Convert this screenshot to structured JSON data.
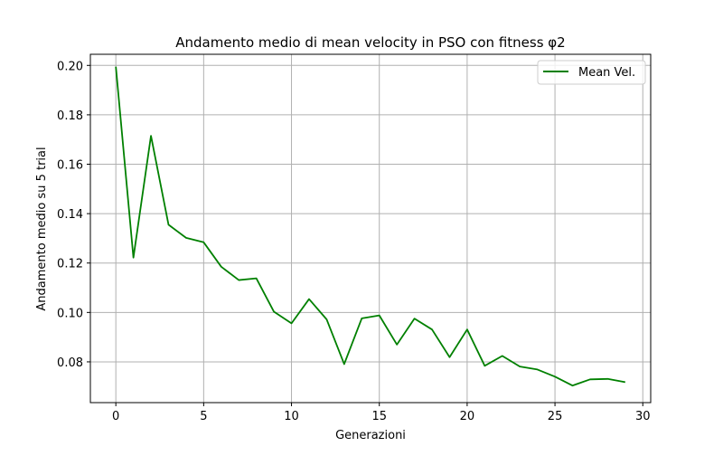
{
  "chart_data": {
    "type": "line",
    "title": "Andamento medio di mean velocity in PSO con fitness φ2",
    "xlabel": "Generazioni",
    "ylabel": "Andamento medio su 5 trial",
    "xlim": [
      -1.45,
      30.45
    ],
    "ylim": [
      0.0635,
      0.2045
    ],
    "xticks": [
      0,
      5,
      10,
      15,
      20,
      25,
      30
    ],
    "xtick_labels": [
      "0",
      "5",
      "10",
      "15",
      "20",
      "25",
      "30"
    ],
    "yticks": [
      0.08,
      0.1,
      0.12,
      0.14,
      0.16,
      0.18,
      0.2
    ],
    "ytick_labels": [
      "0.08",
      "0.10",
      "0.12",
      "0.14",
      "0.16",
      "0.18",
      "0.20"
    ],
    "grid": true,
    "legend_position": "top-right",
    "series": [
      {
        "name": "Mean Vel.",
        "color": "#008000",
        "x": [
          0,
          1,
          2,
          3,
          4,
          5,
          6,
          7,
          8,
          9,
          10,
          11,
          12,
          13,
          14,
          15,
          16,
          17,
          18,
          19,
          20,
          21,
          22,
          23,
          24,
          25,
          26,
          27,
          28,
          29
        ],
        "y": [
          0.1995,
          0.1222,
          0.1715,
          0.1355,
          0.1302,
          0.1284,
          0.1185,
          0.1131,
          0.1138,
          0.1003,
          0.0956,
          0.1054,
          0.0972,
          0.0791,
          0.0976,
          0.0988,
          0.087,
          0.0975,
          0.0931,
          0.0819,
          0.0931,
          0.0784,
          0.0824,
          0.0781,
          0.0769,
          0.074,
          0.0704,
          0.0729,
          0.0731,
          0.0718
        ]
      }
    ]
  }
}
